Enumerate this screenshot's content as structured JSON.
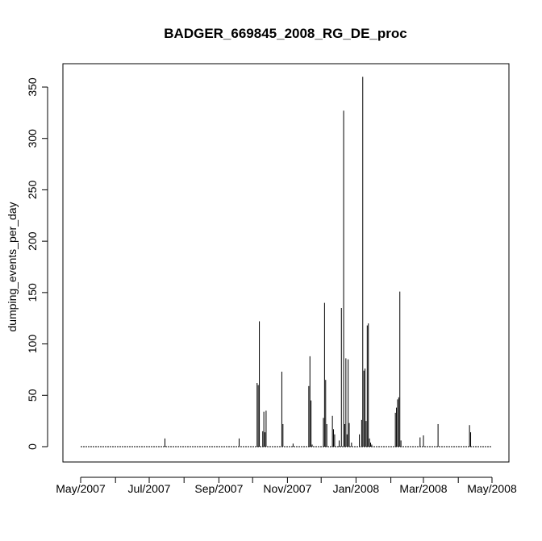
{
  "chart_data": {
    "type": "bar",
    "title": "BADGER_669845_2008_RG_DE_proc",
    "xlabel": "",
    "ylabel": "dumping_events_per_day",
    "ylim": [
      0,
      350
    ],
    "xlim": [
      "2007-05-01",
      "2008-05-01"
    ],
    "y_ticks": [
      0,
      50,
      100,
      150,
      200,
      250,
      300,
      350
    ],
    "x_ticks": [
      {
        "date": "2007-05-01",
        "label": "May/2007"
      },
      {
        "date": "2007-06-01",
        "label": ""
      },
      {
        "date": "2007-07-01",
        "label": "Jul/2007"
      },
      {
        "date": "2007-08-01",
        "label": ""
      },
      {
        "date": "2007-09-01",
        "label": "Sep/2007"
      },
      {
        "date": "2007-10-01",
        "label": ""
      },
      {
        "date": "2007-11-01",
        "label": "Nov/2007"
      },
      {
        "date": "2007-12-01",
        "label": ""
      },
      {
        "date": "2008-01-01",
        "label": "Jan/2008"
      },
      {
        "date": "2008-02-01",
        "label": ""
      },
      {
        "date": "2008-03-01",
        "label": "Mar/2008"
      },
      {
        "date": "2008-04-01",
        "label": ""
      },
      {
        "date": "2008-05-01",
        "label": "May/2008"
      }
    ],
    "baseline_range": [
      "2007-05-01",
      "2008-05-01"
    ],
    "series": [
      {
        "x": [
          "2007-07-15",
          "2007-09-19",
          "2007-10-05",
          "2007-10-06",
          "2007-10-07",
          "2007-10-10",
          "2007-10-11",
          "2007-10-12",
          "2007-10-13",
          "2007-10-27",
          "2007-10-28",
          "2007-11-06",
          "2007-11-20",
          "2007-11-21",
          "2007-11-22",
          "2007-11-23",
          "2007-12-03",
          "2007-12-04",
          "2007-12-05",
          "2007-12-06",
          "2007-12-11",
          "2007-12-12",
          "2007-12-13",
          "2007-12-17",
          "2007-12-19",
          "2007-12-21",
          "2007-12-22",
          "2007-12-23",
          "2007-12-24",
          "2007-12-25",
          "2007-12-26",
          "2007-12-28",
          "2008-01-04",
          "2008-01-06",
          "2008-01-07",
          "2008-01-08",
          "2008-01-09",
          "2008-01-10",
          "2008-01-11",
          "2008-01-12",
          "2008-01-13",
          "2008-01-14",
          "2008-01-15",
          "2008-02-05",
          "2008-02-06",
          "2008-02-07",
          "2008-02-08",
          "2008-02-09",
          "2008-02-10",
          "2008-02-27",
          "2008-03-01",
          "2008-03-14",
          "2008-04-11",
          "2008-04-12"
        ],
        "values": [
          8,
          8,
          62,
          60,
          122,
          15,
          34,
          14,
          35,
          73,
          22,
          3,
          59,
          88,
          45,
          2,
          28,
          140,
          65,
          22,
          30,
          17,
          12,
          6,
          135,
          327,
          22,
          86,
          12,
          85,
          23,
          4,
          12,
          26,
          360,
          74,
          76,
          25,
          118,
          120,
          8,
          4,
          2,
          33,
          38,
          46,
          48,
          151,
          6,
          9,
          11,
          22,
          21,
          14
        ]
      }
    ]
  }
}
